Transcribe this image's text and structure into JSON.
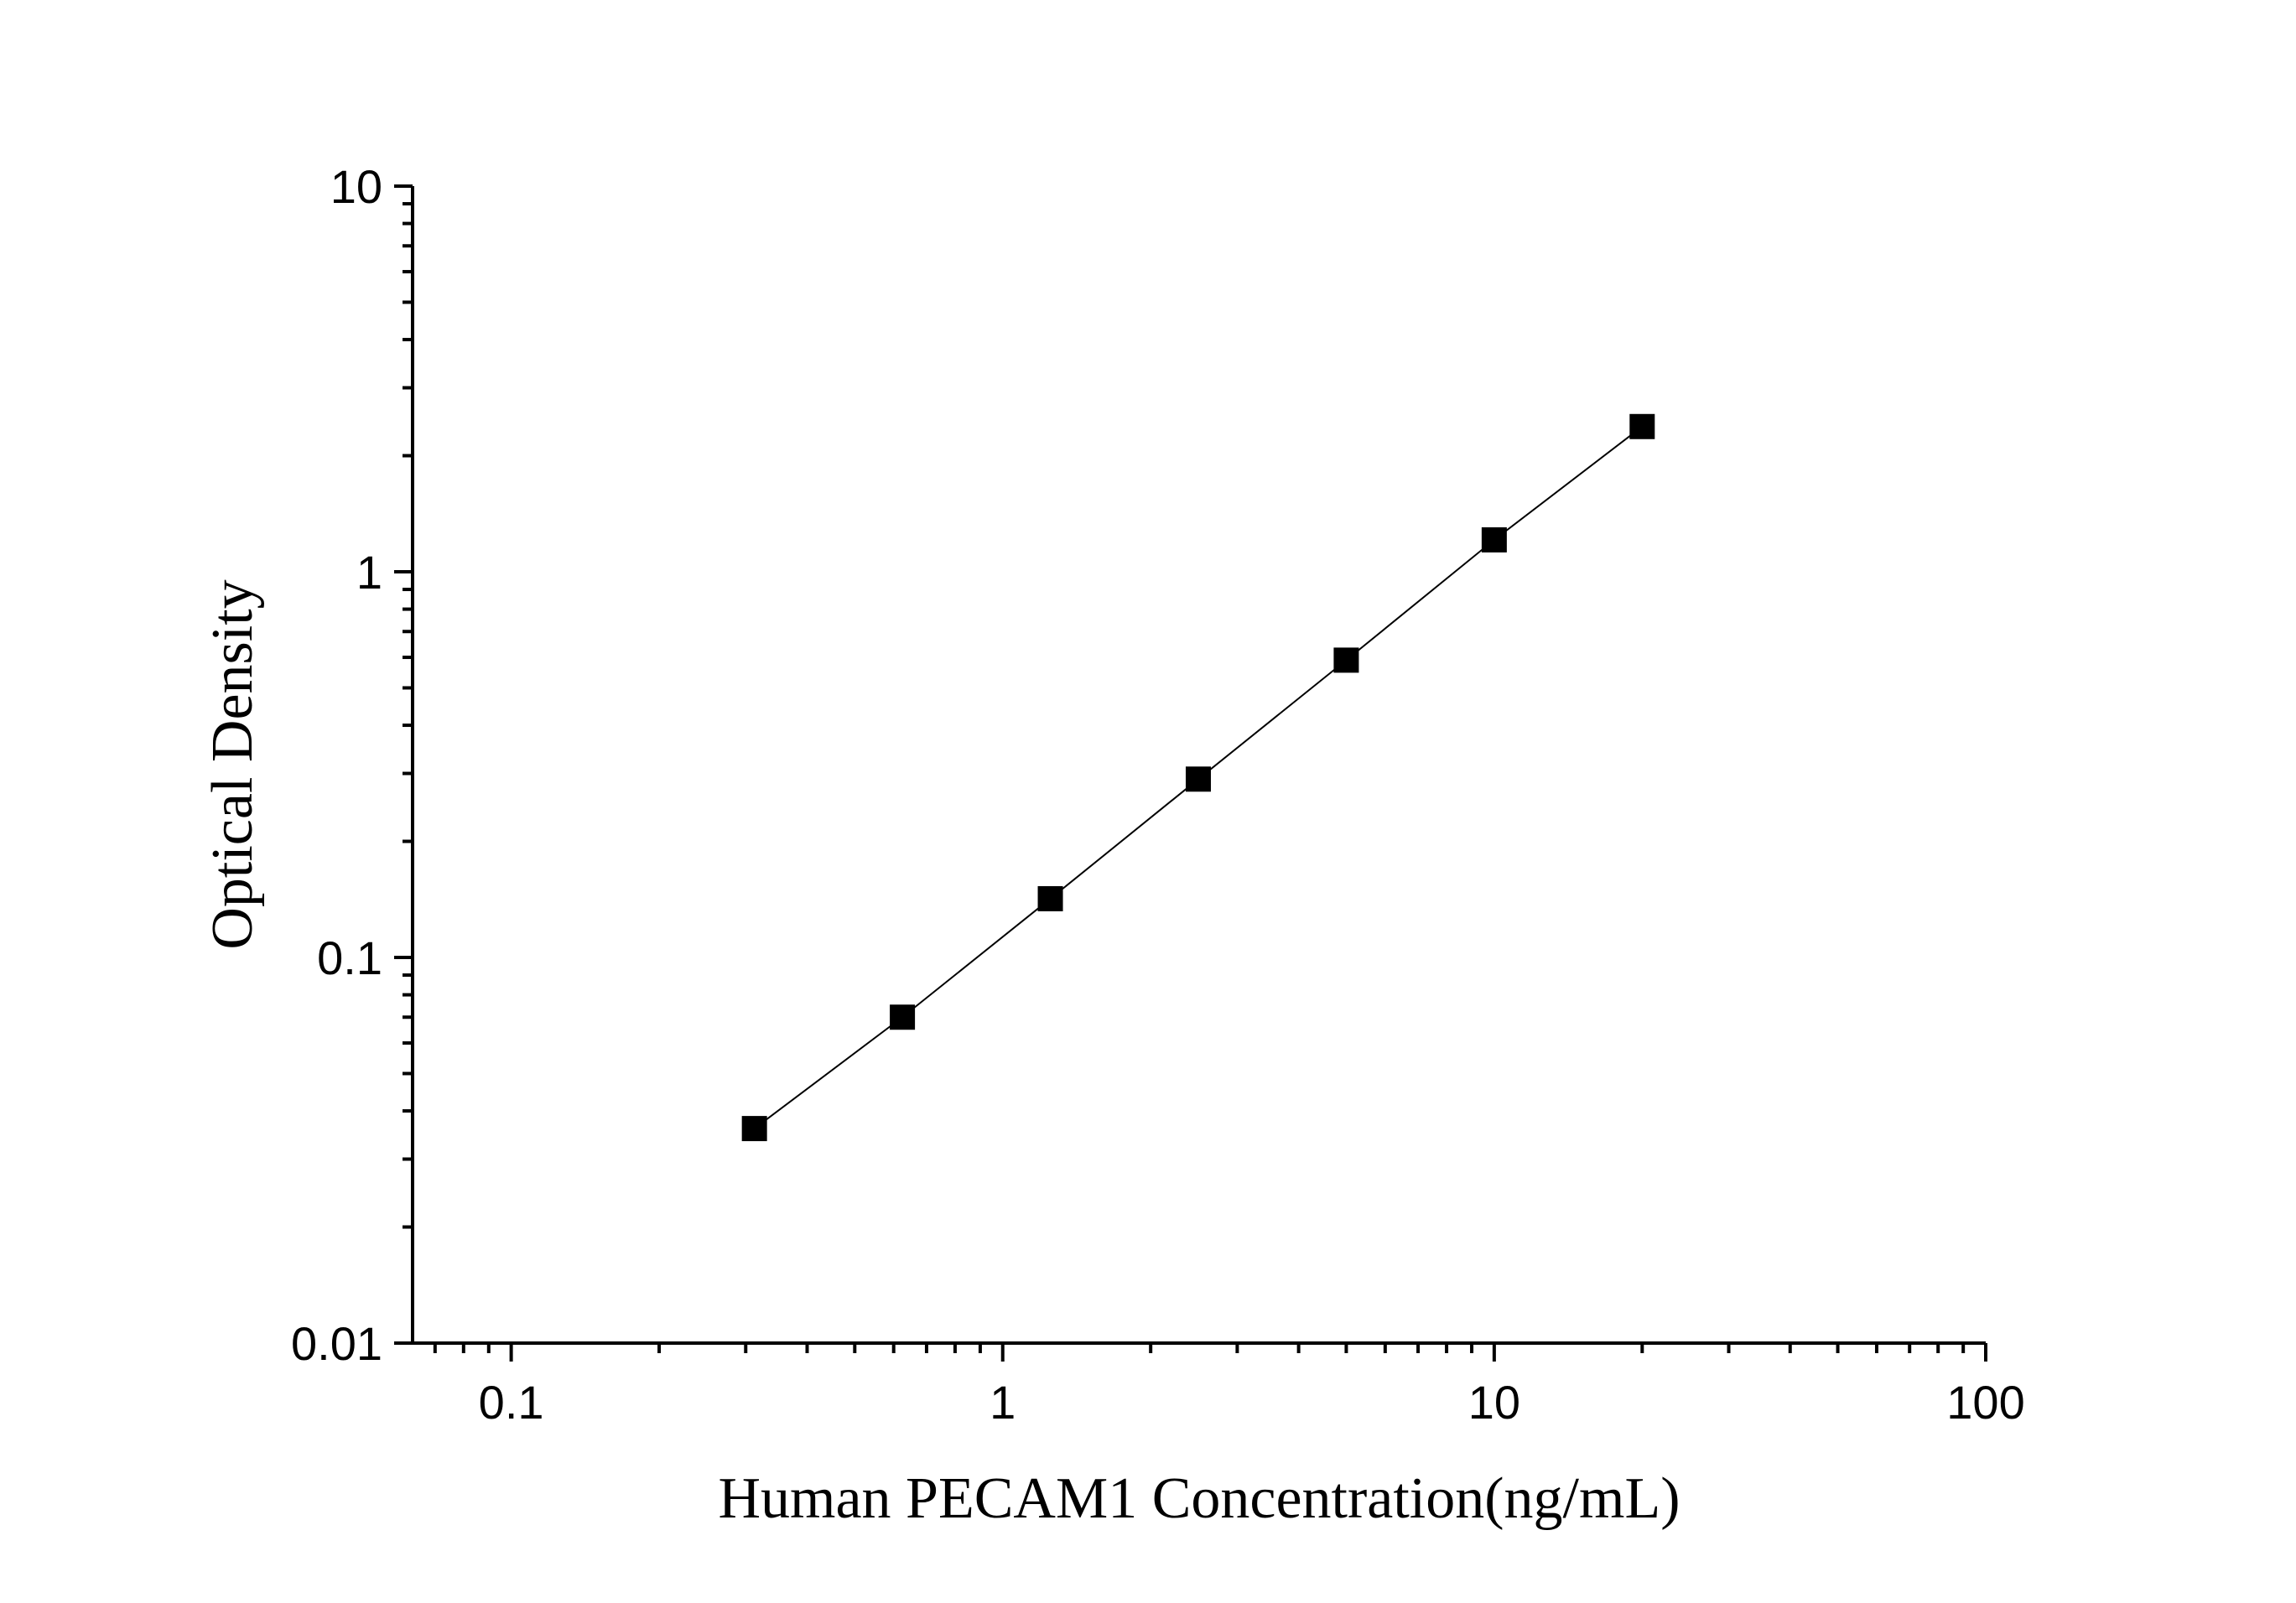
{
  "chart_data": {
    "type": "scatter",
    "xlabel": "Human PECAM1 Concentration(ng/mL)",
    "ylabel": "Optical Density",
    "x_scale": "log",
    "y_scale": "log",
    "xlim": [
      0.063,
      100
    ],
    "ylim": [
      0.01,
      10
    ],
    "x_ticks": [
      "0.1",
      "1",
      "10",
      "100"
    ],
    "y_ticks": [
      "0.01",
      "0.1",
      "1",
      "10"
    ],
    "grid": false,
    "series": [
      {
        "x": [
          0.3125,
          0.625,
          1.25,
          2.5,
          5,
          10,
          20
        ],
        "y": [
          0.036,
          0.07,
          0.142,
          0.29,
          0.59,
          1.21,
          2.38
        ],
        "marker": "square",
        "line": true,
        "color": "#000000"
      }
    ]
  }
}
